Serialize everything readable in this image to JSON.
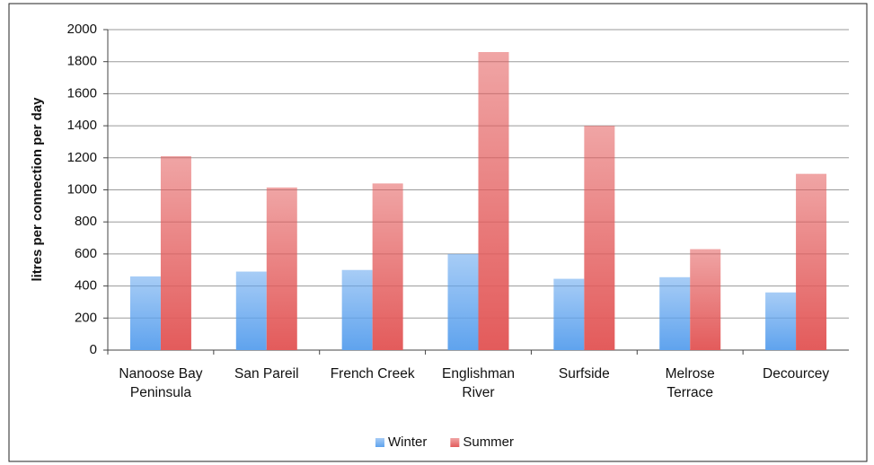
{
  "chart_data": {
    "type": "bar",
    "y_label": "litres per connection per day",
    "categories": [
      "Nanoose Bay Peninsula",
      "San Pareil",
      "French Creek",
      "Englishman River",
      "Surfside",
      "Melrose Terrace",
      "Decourcey"
    ],
    "series": [
      {
        "name": "Winter",
        "color": "#5fa3ee",
        "values": [
          460,
          490,
          500,
          600,
          445,
          455,
          360
        ]
      },
      {
        "name": "Summer",
        "color": "#e35b5b",
        "values": [
          1210,
          1015,
          1040,
          1860,
          1400,
          630,
          1100
        ]
      }
    ],
    "ylim": [
      0,
      2000
    ],
    "yticks": [
      0,
      200,
      400,
      600,
      800,
      1000,
      1200,
      1400,
      1600,
      1800,
      2000
    ],
    "grid": true,
    "legend": "bottom"
  }
}
